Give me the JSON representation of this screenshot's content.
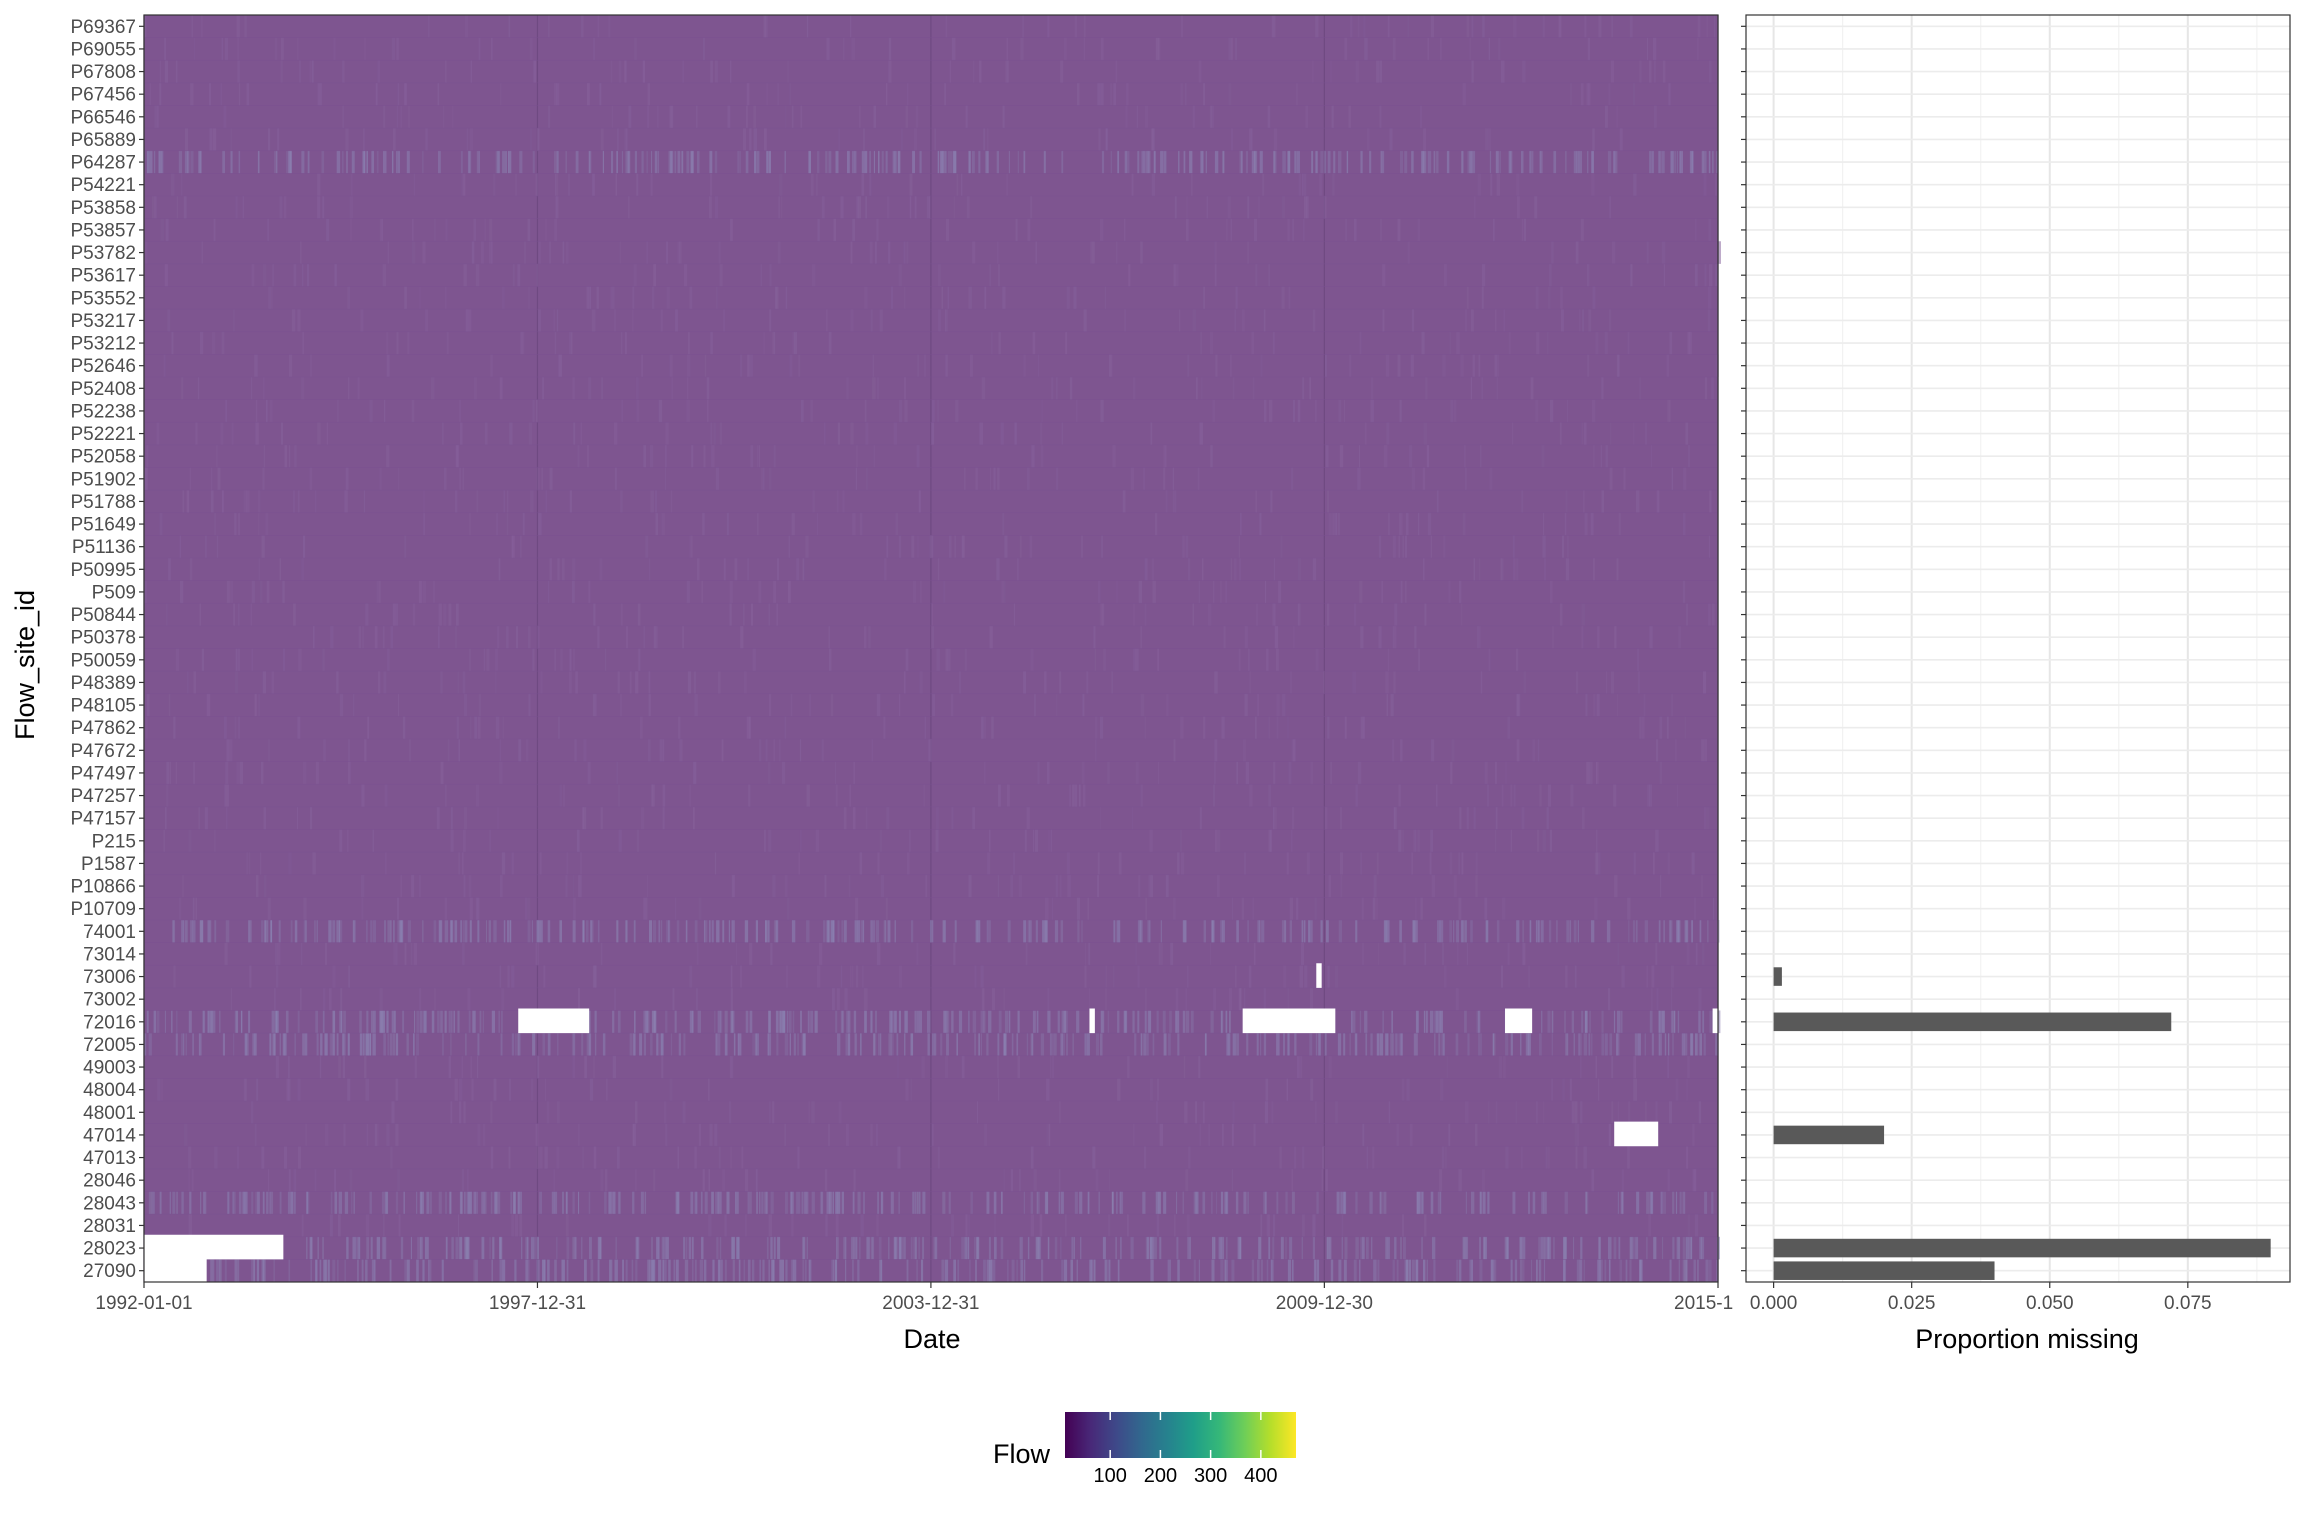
{
  "chart_data": [
    {
      "type": "heatmap",
      "xlabel": "Date",
      "ylabel": "Flow_site_id",
      "x_ticks": [
        "1992-01-01",
        "1997-12-31",
        "2003-12-31",
        "2009-12-30",
        "2015-1"
      ],
      "xlim": [
        "1992-01-01",
        "2015-12-31"
      ],
      "sites": [
        "P69367",
        "P69055",
        "P67808",
        "P67456",
        "P66546",
        "P65889",
        "P64287",
        "P54221",
        "P53858",
        "P53857",
        "P53782",
        "P53617",
        "P53552",
        "P53217",
        "P53212",
        "P52646",
        "P52408",
        "P52238",
        "P52221",
        "P52058",
        "P51902",
        "P51788",
        "P51649",
        "P51136",
        "P50995",
        "P509",
        "P50844",
        "P50378",
        "P50059",
        "P48389",
        "P48105",
        "P47862",
        "P47672",
        "P47497",
        "P47257",
        "P47157",
        "P215",
        "P1587",
        "P10866",
        "P10709",
        "74001",
        "73014",
        "73006",
        "73002",
        "72016",
        "72005",
        "49003",
        "48004",
        "48001",
        "47014",
        "47013",
        "28046",
        "28043",
        "28031",
        "28023",
        "27090"
      ],
      "base_color": "#7e5590",
      "variable_flow_sites": [
        "P64287",
        "74001",
        "72016",
        "72005",
        "28043",
        "28023",
        "27090"
      ],
      "missing_periods": [
        {
          "site": "72016",
          "start": "1997-09-15",
          "end": "1998-10-15"
        },
        {
          "site": "72016",
          "start": "2006-06-01",
          "end": "2006-07-01"
        },
        {
          "site": "72016",
          "start": "2008-10-01",
          "end": "2010-03-01"
        },
        {
          "site": "72016",
          "start": "2012-10-01",
          "end": "2013-03-01"
        },
        {
          "site": "72016",
          "start": "2015-12-01",
          "end": "2015-12-31"
        },
        {
          "site": "73006",
          "start": "2009-11-15",
          "end": "2009-12-15"
        },
        {
          "site": "47014",
          "start": "2014-06-01",
          "end": "2015-02-01"
        },
        {
          "site": "28023",
          "start": "1992-01-01",
          "end": "1994-02-15"
        },
        {
          "site": "27090",
          "start": "1992-01-01",
          "end": "1992-12-15"
        }
      ],
      "legend": {
        "title": "Flow",
        "ticks": [
          100,
          200,
          300,
          400
        ],
        "range": [
          10,
          470
        ],
        "colors": [
          "#440154",
          "#482878",
          "#3e4989",
          "#31688e",
          "#26828e",
          "#1f9e89",
          "#35b779",
          "#6ece58",
          "#b5de2b",
          "#fde725"
        ]
      }
    },
    {
      "type": "bar",
      "orientation": "horizontal",
      "xlabel": "Proportion missing",
      "x_ticks": [
        "0.000",
        "0.025",
        "0.050",
        "0.075"
      ],
      "xlim": [
        -0.005,
        0.0935
      ],
      "bar_color": "#595959",
      "categories_from": "sites",
      "values": {
        "73006": 0.0015,
        "72016": 0.072,
        "47014": 0.02,
        "28023": 0.09,
        "27090": 0.04
      }
    }
  ]
}
